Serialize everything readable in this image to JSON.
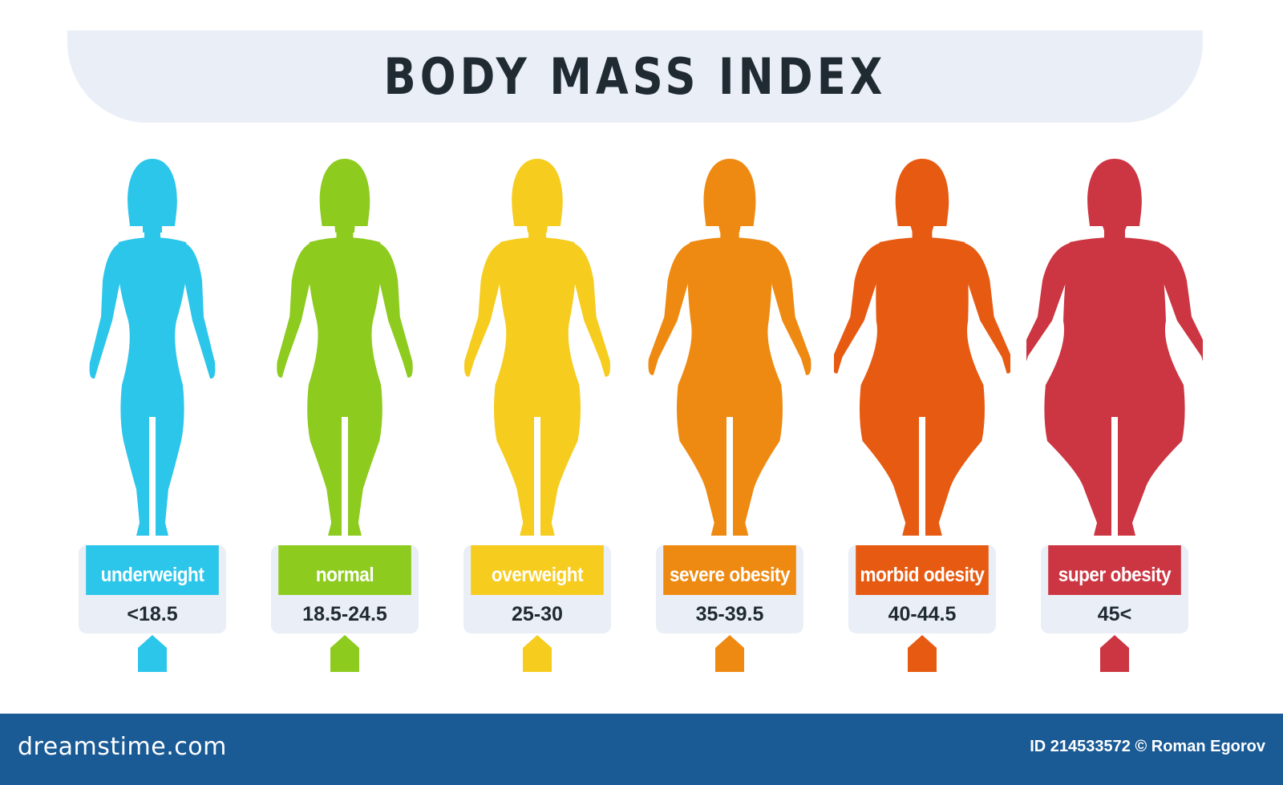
{
  "title": "BODY MASS INDEX",
  "categories": [
    {
      "label": "underweight",
      "value": "<18.5",
      "color": "#2bc6ea",
      "width": 0.0
    },
    {
      "label": "normal",
      "value": "18.5-24.5",
      "color": "#8dcb1f",
      "width": 0.15
    },
    {
      "label": "overweight",
      "value": "25-30",
      "color": "#f6cc1f",
      "width": 0.3
    },
    {
      "label": "severe obesity",
      "value": "35-39.5",
      "color": "#ee8a12",
      "width": 0.55
    },
    {
      "label": "morbid odesity",
      "value": "40-44.5",
      "color": "#e75a12",
      "width": 0.8
    },
    {
      "label": "super obesity",
      "value": "45<",
      "color": "#cc3642",
      "width": 1.0
    }
  ],
  "footer": {
    "brand": "dreamstime.com",
    "credit": "ID 214533572 © Roman Egorov"
  }
}
